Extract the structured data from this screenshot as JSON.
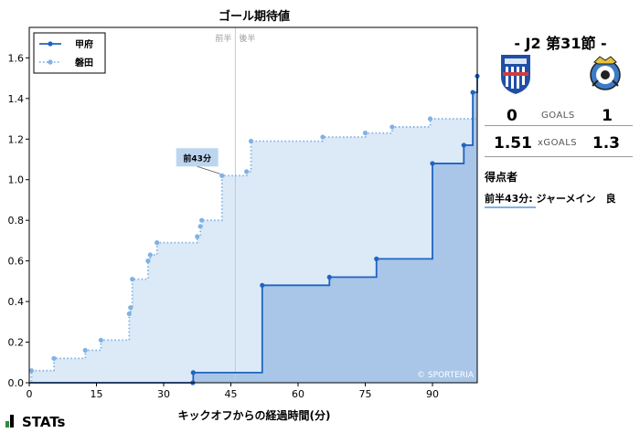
{
  "chart_data": {
    "type": "line",
    "title": "ゴール期待値",
    "xlabel": "キックオフからの経過時間(分)",
    "ylabel": "",
    "xlim": [
      0,
      100
    ],
    "ylim": [
      0,
      1.75
    ],
    "xticks": [
      0,
      15,
      30,
      45,
      60,
      75,
      90
    ],
    "yticks": [
      0.0,
      0.2,
      0.4,
      0.6,
      0.8,
      1.0,
      1.2,
      1.4,
      1.6
    ],
    "halftime_x": 46,
    "halftime_labels": {
      "first": "前半",
      "second": "後半"
    },
    "legend_position": "top-left",
    "grid": false,
    "watermark": "© SPORTERIA",
    "annotation": {
      "text": "前43分",
      "x": 43,
      "y": 1.02
    },
    "series": [
      {
        "name": "甲府",
        "color": "#1f64c0",
        "fill": "#a9c6e8",
        "style": "solid",
        "x": [
          0,
          36.5,
          36.6,
          52,
          67,
          77.5,
          90,
          97,
          99,
          100
        ],
        "y": [
          0,
          0,
          0.05,
          0.48,
          0.52,
          0.61,
          1.08,
          1.17,
          1.43,
          1.51
        ]
      },
      {
        "name": "磐田",
        "color": "#7fb2e5",
        "fill": "#dce9f7",
        "style": "dotted",
        "x": [
          0,
          0.5,
          5.5,
          12.5,
          16,
          22.3,
          22.6,
          23,
          26.5,
          27,
          28.5,
          37.5,
          38.2,
          38.5,
          43,
          48.5,
          49.5,
          65.5,
          75,
          81,
          89.5
        ],
        "y": [
          0,
          0.06,
          0.12,
          0.16,
          0.21,
          0.34,
          0.37,
          0.51,
          0.6,
          0.63,
          0.69,
          0.72,
          0.77,
          0.8,
          1.02,
          1.04,
          1.19,
          1.21,
          1.23,
          1.26,
          1.3
        ]
      }
    ]
  },
  "panel": {
    "match_label": "- J2 第31節 -",
    "home_goals": "0",
    "away_goals": "1",
    "goals_label": "GOALS",
    "home_xg": "1.51",
    "away_xg": "1.3",
    "xg_label": "xGOALS",
    "scorers_title": "得点者",
    "scorer_entry": "前半43分: ジャーメイン　良",
    "home_crest_color": "#1f4fa6",
    "away_crest_color": "#3a7cc7"
  },
  "brand": {
    "name": "STATs"
  }
}
